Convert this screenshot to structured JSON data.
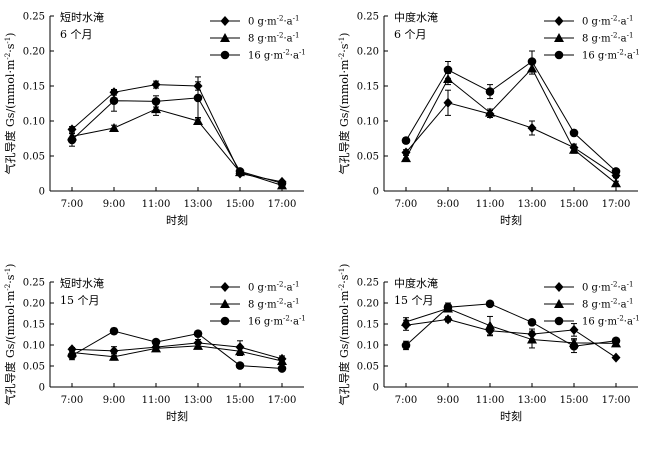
{
  "series_styles": [
    {
      "name": "0 g·m⁻²·a⁻¹",
      "marker": "diamond"
    },
    {
      "name": "8 g·m⁻²·a⁻¹",
      "marker": "triangle"
    },
    {
      "name": "16 g·m⁻²·a⁻¹",
      "marker": "circle"
    }
  ],
  "chart_data": [
    {
      "type": "line",
      "condition": "短时水淹",
      "duration": "6 个月",
      "xlabel": "时刻",
      "ylabel": "气孔导度 Gs/(mmol·m⁻²·s⁻¹)",
      "categories": [
        "7:00",
        "9:00",
        "11:00",
        "13:00",
        "15:00",
        "17:00"
      ],
      "yticks": [
        "0",
        "0.05",
        "0.10",
        "0.15",
        "0.20",
        "0.25"
      ],
      "ylim": [
        0,
        0.25
      ],
      "series": [
        {
          "name": "0 g·m⁻²·a⁻¹",
          "values": [
            0.088,
            0.141,
            0.152,
            0.15,
            0.025,
            0.013
          ],
          "err": [
            0.004,
            0.004,
            0.005,
            0.006,
            0.003,
            0.002
          ]
        },
        {
          "name": "8 g·m⁻²·a⁻¹",
          "values": [
            0.078,
            0.09,
            0.117,
            0.1,
            0.027,
            0.008
          ],
          "err": [
            0.004,
            0.004,
            0.009,
            0.005,
            0.003,
            0.002
          ]
        },
        {
          "name": "16 g·m⁻²·a⁻¹",
          "values": [
            0.073,
            0.129,
            0.128,
            0.133,
            0.028,
            0.011
          ],
          "err": [
            0.009,
            0.015,
            0.008,
            0.03,
            0.003,
            0.002
          ]
        }
      ]
    },
    {
      "type": "line",
      "condition": "中度水淹",
      "duration": "6 个月",
      "xlabel": "时刻",
      "ylabel": "气孔导度 Gs/(mmol·m⁻²·s⁻¹)",
      "categories": [
        "7:00",
        "9:00",
        "11:00",
        "13:00",
        "15:00",
        "17:00"
      ],
      "yticks": [
        "0",
        "0.05",
        "0.10",
        "0.15",
        "0.20",
        "0.25"
      ],
      "ylim": [
        0,
        0.25
      ],
      "series": [
        {
          "name": "0 g·m⁻²·a⁻¹",
          "values": [
            0.055,
            0.126,
            0.11,
            0.09,
            0.062,
            0.022
          ],
          "err": [
            0.004,
            0.018,
            0.005,
            0.01,
            0.005,
            0.003
          ]
        },
        {
          "name": "8 g·m⁻²·a⁻¹",
          "values": [
            0.047,
            0.16,
            0.112,
            0.175,
            0.059,
            0.011
          ],
          "err": [
            0.004,
            0.008,
            0.005,
            0.008,
            0.005,
            0.003
          ]
        },
        {
          "name": "16 g·m⁻²·a⁻¹",
          "values": [
            0.072,
            0.173,
            0.142,
            0.185,
            0.083,
            0.028
          ],
          "err": [
            0.004,
            0.012,
            0.01,
            0.015,
            0.004,
            0.003
          ]
        }
      ]
    },
    {
      "type": "line",
      "condition": "短时水淹",
      "duration": "15 个月",
      "xlabel": "时刻",
      "ylabel": "气孔导度 Gs/(mmol·m⁻²·s⁻¹)",
      "categories": [
        "7:00",
        "9:00",
        "11:00",
        "13:00",
        "15:00",
        "17:00"
      ],
      "yticks": [
        "0",
        "0.05",
        "0.10",
        "0.15",
        "0.20",
        "0.25"
      ],
      "ylim": [
        0,
        0.25
      ],
      "series": [
        {
          "name": "0 g·m⁻²·a⁻¹",
          "values": [
            0.09,
            0.086,
            0.095,
            0.105,
            0.095,
            0.067
          ],
          "err": [
            0.004,
            0.01,
            0.005,
            0.008,
            0.015,
            0.007
          ]
        },
        {
          "name": "8 g·m⁻²·a⁻¹",
          "values": [
            0.082,
            0.072,
            0.092,
            0.098,
            0.085,
            0.062
          ],
          "err": [
            0.004,
            0.008,
            0.005,
            0.005,
            0.01,
            0.005
          ]
        },
        {
          "name": "16 g·m⁻²·a⁻¹",
          "values": [
            0.075,
            0.133,
            0.107,
            0.127,
            0.051,
            0.044
          ],
          "err": [
            0.01,
            0.007,
            0.005,
            0.004,
            0.003,
            0.003
          ]
        }
      ]
    },
    {
      "type": "line",
      "condition": "中度水淹",
      "duration": "15 个月",
      "xlabel": "时刻",
      "ylabel": "气孔导度 Gs/(mmol·m⁻²·s⁻¹)",
      "categories": [
        "7:00",
        "9:00",
        "11:00",
        "13:00",
        "15:00",
        "17:00"
      ],
      "yticks": [
        "0",
        "0.05",
        "0.10",
        "0.15",
        "0.20",
        "0.25"
      ],
      "ylim": [
        0,
        0.25
      ],
      "series": [
        {
          "name": "0 g·m⁻²·a⁻¹",
          "values": [
            0.147,
            0.161,
            0.134,
            0.126,
            0.136,
            0.07
          ],
          "err": [
            0.012,
            0.006,
            0.012,
            0.012,
            0.015,
            0.002
          ]
        },
        {
          "name": "8 g·m⁻²·a⁻¹",
          "values": [
            0.155,
            0.187,
            0.146,
            0.113,
            0.105,
            0.104
          ],
          "err": [
            0.01,
            0.006,
            0.022,
            0.02,
            0.01,
            0.005
          ]
        },
        {
          "name": "16 g·m⁻²·a⁻¹",
          "values": [
            0.099,
            0.19,
            0.198,
            0.154,
            0.097,
            0.11
          ],
          "err": [
            0.01,
            0.01,
            0.003,
            0.004,
            0.015,
            0.005
          ]
        }
      ]
    }
  ]
}
